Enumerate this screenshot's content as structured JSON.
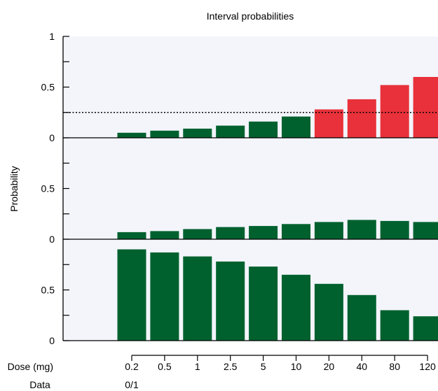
{
  "chart_data": {
    "type": "bar",
    "title": "Interval probabilities",
    "ylabel": "Probability",
    "x_axis_label": "Dose (mg)",
    "row_label_data": "Data",
    "categories": [
      "0.2",
      "0.5",
      "1",
      "2.5",
      "5",
      "10",
      "20",
      "40",
      "80",
      "120"
    ],
    "data_row_values": [
      "0/1"
    ],
    "panels": [
      {
        "name": "top",
        "ylim": [
          0,
          1
        ],
        "yticks": [
          "1",
          "0.5",
          "0"
        ],
        "threshold": 0.25,
        "values": [
          0.05,
          0.07,
          0.09,
          0.12,
          0.16,
          0.21,
          0.28,
          0.38,
          0.52,
          0.6
        ],
        "colors": [
          "#00612e",
          "#00612e",
          "#00612e",
          "#00612e",
          "#00612e",
          "#00612e",
          "#e8313a",
          "#e8313a",
          "#e8313a",
          "#e8313a"
        ]
      },
      {
        "name": "middle",
        "ylim": [
          0,
          1
        ],
        "yticks": [
          "0.5",
          "0"
        ],
        "values": [
          0.07,
          0.08,
          0.1,
          0.12,
          0.13,
          0.15,
          0.17,
          0.19,
          0.18,
          0.17
        ],
        "colors": [
          "#00612e",
          "#00612e",
          "#00612e",
          "#00612e",
          "#00612e",
          "#00612e",
          "#00612e",
          "#00612e",
          "#00612e",
          "#00612e"
        ]
      },
      {
        "name": "bottom",
        "ylim": [
          0,
          1
        ],
        "yticks": [
          "0.5",
          "0"
        ],
        "values": [
          0.9,
          0.87,
          0.83,
          0.78,
          0.73,
          0.65,
          0.56,
          0.45,
          0.3,
          0.24
        ],
        "colors": [
          "#00612e",
          "#00612e",
          "#00612e",
          "#00612e",
          "#00612e",
          "#00612e",
          "#00612e",
          "#00612e",
          "#00612e",
          "#00612e"
        ]
      }
    ]
  }
}
